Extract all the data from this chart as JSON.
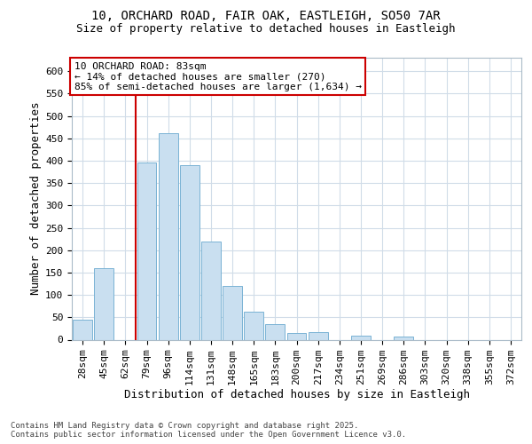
{
  "title_line1": "10, ORCHARD ROAD, FAIR OAK, EASTLEIGH, SO50 7AR",
  "title_line2": "Size of property relative to detached houses in Eastleigh",
  "xlabel": "Distribution of detached houses by size in Eastleigh",
  "ylabel": "Number of detached properties",
  "categories": [
    "28sqm",
    "45sqm",
    "62sqm",
    "79sqm",
    "96sqm",
    "114sqm",
    "131sqm",
    "148sqm",
    "165sqm",
    "183sqm",
    "200sqm",
    "217sqm",
    "234sqm",
    "251sqm",
    "269sqm",
    "286sqm",
    "303sqm",
    "320sqm",
    "338sqm",
    "355sqm",
    "372sqm"
  ],
  "values": [
    45,
    160,
    0,
    395,
    462,
    390,
    220,
    120,
    62,
    35,
    14,
    17,
    0,
    8,
    0,
    6,
    0,
    0,
    0,
    0,
    0
  ],
  "bar_color": "#c9dff0",
  "bar_edge_color": "#7ab3d4",
  "vline_x_idx": 3,
  "vline_color": "#cc0000",
  "annotation_text": "10 ORCHARD ROAD: 83sqm\n← 14% of detached houses are smaller (270)\n85% of semi-detached houses are larger (1,634) →",
  "annotation_box_color": "white",
  "annotation_box_edge_color": "#cc0000",
  "ylim": [
    0,
    630
  ],
  "yticks": [
    0,
    50,
    100,
    150,
    200,
    250,
    300,
    350,
    400,
    450,
    500,
    550,
    600
  ],
  "footer_text": "Contains HM Land Registry data © Crown copyright and database right 2025.\nContains public sector information licensed under the Open Government Licence v3.0.",
  "bg_color": "#ffffff",
  "grid_color": "#d0dce8",
  "title1_fontsize": 10,
  "title2_fontsize": 9,
  "axis_label_fontsize": 9,
  "tick_fontsize": 8,
  "annotation_fontsize": 8,
  "footer_fontsize": 6.5
}
